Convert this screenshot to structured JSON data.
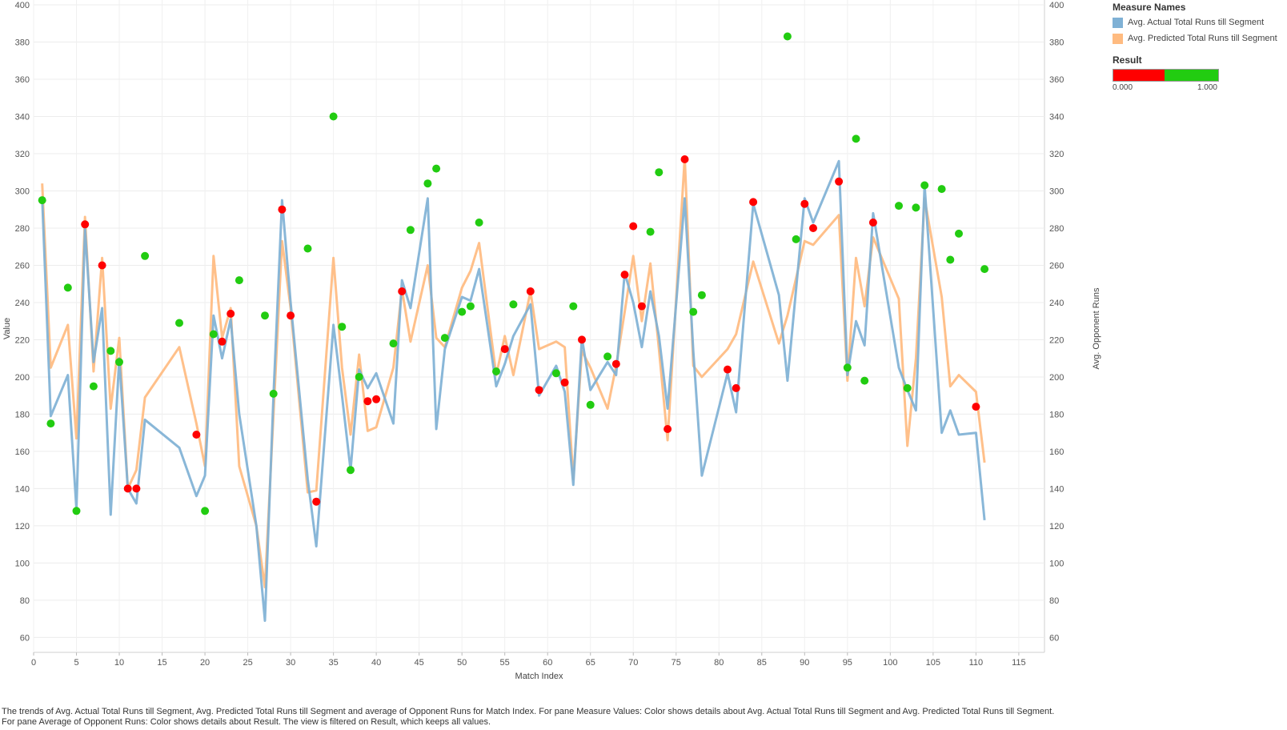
{
  "chart_data": {
    "type": "line",
    "xlabel": "Match Index",
    "ylabel": "Value",
    "y2label": "Avg. Opponent Runs",
    "xlim": [
      0,
      118
    ],
    "ylim": [
      52,
      400
    ],
    "x_ticks": [
      0,
      5,
      10,
      15,
      20,
      25,
      30,
      35,
      40,
      45,
      50,
      55,
      60,
      65,
      70,
      75,
      80,
      85,
      90,
      95,
      100,
      105,
      110,
      115
    ],
    "y_ticks": [
      60,
      80,
      100,
      120,
      140,
      160,
      180,
      200,
      220,
      240,
      260,
      280,
      300,
      320,
      340,
      360,
      380,
      400
    ],
    "grid": true,
    "series": [
      {
        "name": "Avg. Actual Total Runs till Segment",
        "color": "#7fb1d5",
        "points": [
          [
            1,
            296
          ],
          [
            2,
            179
          ],
          [
            4,
            201
          ],
          [
            5,
            129
          ],
          [
            6,
            280
          ],
          [
            7,
            208
          ],
          [
            8,
            237
          ],
          [
            9,
            126
          ],
          [
            10,
            210
          ],
          [
            11,
            140
          ],
          [
            12,
            132
          ],
          [
            13,
            177
          ],
          [
            17,
            162
          ],
          [
            19,
            136
          ],
          [
            20,
            147
          ],
          [
            21,
            233
          ],
          [
            22,
            210
          ],
          [
            23,
            231
          ],
          [
            24,
            180
          ],
          [
            26,
            120
          ],
          [
            27,
            69
          ],
          [
            28,
            190
          ],
          [
            29,
            295
          ],
          [
            30,
            240
          ],
          [
            32,
            145
          ],
          [
            33,
            109
          ],
          [
            35,
            228
          ],
          [
            36,
            190
          ],
          [
            37,
            150
          ],
          [
            38,
            204
          ],
          [
            39,
            194
          ],
          [
            40,
            202
          ],
          [
            42,
            175
          ],
          [
            43,
            252
          ],
          [
            44,
            237
          ],
          [
            46,
            296
          ],
          [
            47,
            172
          ],
          [
            48,
            215
          ],
          [
            50,
            243
          ],
          [
            51,
            241
          ],
          [
            52,
            258
          ],
          [
            54,
            195
          ],
          [
            55,
            207
          ],
          [
            56,
            222
          ],
          [
            58,
            239
          ],
          [
            59,
            190
          ],
          [
            61,
            206
          ],
          [
            62,
            192
          ],
          [
            63,
            142
          ],
          [
            64,
            221
          ],
          [
            65,
            193
          ],
          [
            67,
            208
          ],
          [
            68,
            201
          ],
          [
            69,
            256
          ],
          [
            70,
            240
          ],
          [
            71,
            216
          ],
          [
            72,
            246
          ],
          [
            73,
            222
          ],
          [
            74,
            183
          ],
          [
            76,
            296
          ],
          [
            77,
            214
          ],
          [
            78,
            147
          ],
          [
            81,
            202
          ],
          [
            82,
            181
          ],
          [
            84,
            293
          ],
          [
            87,
            244
          ],
          [
            88,
            198
          ],
          [
            90,
            296
          ],
          [
            91,
            283
          ],
          [
            94,
            316
          ],
          [
            95,
            201
          ],
          [
            96,
            230
          ],
          [
            97,
            217
          ],
          [
            98,
            288
          ],
          [
            101,
            205
          ],
          [
            102,
            193
          ],
          [
            103,
            182
          ],
          [
            104,
            303
          ],
          [
            106,
            170
          ],
          [
            107,
            182
          ],
          [
            108,
            169
          ],
          [
            110,
            170
          ],
          [
            111,
            123
          ]
        ]
      },
      {
        "name": "Avg. Predicted Total Runs till Segment",
        "color": "#ffbb80",
        "points": [
          [
            1,
            304
          ],
          [
            2,
            205
          ],
          [
            4,
            228
          ],
          [
            5,
            167
          ],
          [
            6,
            286
          ],
          [
            7,
            203
          ],
          [
            8,
            264
          ],
          [
            9,
            183
          ],
          [
            10,
            221
          ],
          [
            11,
            140
          ],
          [
            12,
            150
          ],
          [
            13,
            189
          ],
          [
            17,
            216
          ],
          [
            19,
            175
          ],
          [
            20,
            152
          ],
          [
            21,
            265
          ],
          [
            22,
            221
          ],
          [
            23,
            237
          ],
          [
            24,
            152
          ],
          [
            26,
            120
          ],
          [
            27,
            87
          ],
          [
            28,
            180
          ],
          [
            29,
            273
          ],
          [
            30,
            237
          ],
          [
            32,
            138
          ],
          [
            33,
            139
          ],
          [
            35,
            264
          ],
          [
            36,
            205
          ],
          [
            37,
            169
          ],
          [
            38,
            212
          ],
          [
            39,
            171
          ],
          [
            40,
            173
          ],
          [
            42,
            205
          ],
          [
            43,
            247
          ],
          [
            44,
            219
          ],
          [
            46,
            260
          ],
          [
            47,
            221
          ],
          [
            48,
            216
          ],
          [
            50,
            248
          ],
          [
            51,
            257
          ],
          [
            52,
            272
          ],
          [
            54,
            201
          ],
          [
            55,
            222
          ],
          [
            56,
            201
          ],
          [
            58,
            246
          ],
          [
            59,
            215
          ],
          [
            61,
            219
          ],
          [
            62,
            216
          ],
          [
            63,
            145
          ],
          [
            64,
            214
          ],
          [
            65,
            205
          ],
          [
            67,
            183
          ],
          [
            68,
            206
          ],
          [
            69,
            235
          ],
          [
            70,
            265
          ],
          [
            71,
            230
          ],
          [
            72,
            261
          ],
          [
            73,
            215
          ],
          [
            74,
            166
          ],
          [
            76,
            318
          ],
          [
            77,
            206
          ],
          [
            78,
            200
          ],
          [
            81,
            215
          ],
          [
            82,
            223
          ],
          [
            84,
            262
          ],
          [
            87,
            218
          ],
          [
            88,
            233
          ],
          [
            90,
            273
          ],
          [
            91,
            271
          ],
          [
            94,
            287
          ],
          [
            95,
            198
          ],
          [
            96,
            264
          ],
          [
            97,
            238
          ],
          [
            98,
            275
          ],
          [
            101,
            242
          ],
          [
            102,
            163
          ],
          [
            103,
            210
          ],
          [
            104,
            296
          ],
          [
            106,
            243
          ],
          [
            107,
            195
          ],
          [
            108,
            201
          ],
          [
            110,
            192
          ],
          [
            111,
            154
          ]
        ]
      }
    ],
    "opponent_runs": {
      "name": "Avg. Opponent Runs",
      "points": [
        [
          1,
          295,
          1
        ],
        [
          2,
          175,
          1
        ],
        [
          4,
          248,
          1
        ],
        [
          5,
          128,
          1
        ],
        [
          6,
          282,
          0
        ],
        [
          7,
          195,
          1
        ],
        [
          8,
          260,
          0
        ],
        [
          9,
          214,
          1
        ],
        [
          10,
          208,
          1
        ],
        [
          11,
          140,
          0
        ],
        [
          12,
          140,
          0
        ],
        [
          13,
          265,
          1
        ],
        [
          17,
          229,
          1
        ],
        [
          19,
          169,
          0
        ],
        [
          20,
          128,
          1
        ],
        [
          21,
          223,
          1
        ],
        [
          22,
          219,
          0
        ],
        [
          23,
          234,
          0
        ],
        [
          24,
          252,
          1
        ],
        [
          27,
          233,
          1
        ],
        [
          28,
          191,
          1
        ],
        [
          29,
          290,
          0
        ],
        [
          30,
          233,
          0
        ],
        [
          32,
          269,
          1
        ],
        [
          33,
          133,
          0
        ],
        [
          35,
          340,
          1
        ],
        [
          36,
          227,
          1
        ],
        [
          37,
          150,
          1
        ],
        [
          38,
          200,
          1
        ],
        [
          39,
          187,
          0
        ],
        [
          40,
          188,
          0
        ],
        [
          42,
          218,
          1
        ],
        [
          43,
          246,
          0
        ],
        [
          44,
          279,
          1
        ],
        [
          46,
          304,
          1
        ],
        [
          47,
          312,
          1
        ],
        [
          48,
          221,
          1
        ],
        [
          50,
          235,
          1
        ],
        [
          51,
          238,
          1
        ],
        [
          52,
          283,
          1
        ],
        [
          54,
          203,
          1
        ],
        [
          55,
          215,
          0
        ],
        [
          56,
          239,
          1
        ],
        [
          58,
          246,
          0
        ],
        [
          59,
          193,
          0
        ],
        [
          61,
          202,
          1
        ],
        [
          62,
          197,
          0
        ],
        [
          63,
          238,
          1
        ],
        [
          64,
          220,
          0
        ],
        [
          65,
          185,
          1
        ],
        [
          67,
          211,
          1
        ],
        [
          68,
          207,
          0
        ],
        [
          69,
          255,
          0
        ],
        [
          70,
          281,
          0
        ],
        [
          71,
          238,
          0
        ],
        [
          72,
          278,
          1
        ],
        [
          73,
          310,
          1
        ],
        [
          74,
          172,
          0
        ],
        [
          76,
          317,
          0
        ],
        [
          77,
          235,
          1
        ],
        [
          78,
          244,
          1
        ],
        [
          81,
          204,
          0
        ],
        [
          82,
          194,
          0
        ],
        [
          84,
          294,
          0
        ],
        [
          88,
          383,
          1
        ],
        [
          89,
          274,
          1
        ],
        [
          90,
          293,
          0
        ],
        [
          91,
          280,
          0
        ],
        [
          94,
          305,
          0
        ],
        [
          95,
          205,
          1
        ],
        [
          96,
          328,
          1
        ],
        [
          97,
          198,
          1
        ],
        [
          98,
          283,
          0
        ],
        [
          101,
          292,
          1
        ],
        [
          102,
          194,
          1
        ],
        [
          103,
          291,
          1
        ],
        [
          104,
          303,
          1
        ],
        [
          106,
          301,
          1
        ],
        [
          107,
          263,
          1
        ],
        [
          108,
          277,
          1
        ],
        [
          110,
          184,
          0
        ],
        [
          111,
          258,
          1
        ]
      ]
    },
    "result_colors": {
      "0": "#ff0000",
      "1": "#22cc11"
    }
  },
  "legend": {
    "measure_title": "Measure Names",
    "items": [
      {
        "label": "Avg. Actual Total Runs till Segment",
        "color": "#7fb1d5"
      },
      {
        "label": "Avg. Predicted Total Runs till Segment",
        "color": "#ffbb80"
      }
    ],
    "result_title": "Result",
    "result_min": "0.000",
    "result_max": "1.000",
    "result_low_color": "#ff0000",
    "result_high_color": "#22cc11"
  },
  "caption": "The trends of Avg. Actual Total Runs till Segment, Avg. Predicted Total Runs till Segment and average of Opponent Runs for Match Index.  For pane Measure Values:  Color shows details about Avg. Actual Total Runs till Segment and Avg. Predicted Total Runs till Segment.  For pane Average of Opponent Runs:  Color shows details about Result. The view is filtered on Result, which keeps all values."
}
